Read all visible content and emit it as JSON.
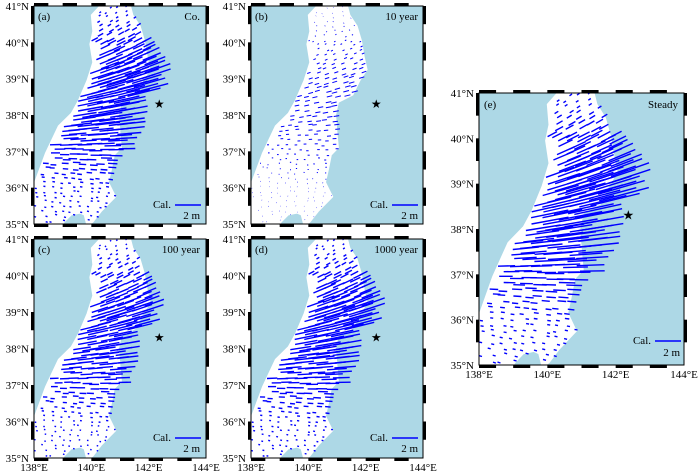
{
  "figure": {
    "panels": [
      {
        "id": "a",
        "tag": "(a)",
        "title": "Co.",
        "lat_labels": [
          "41°N",
          "40°N",
          "39°N",
          "38°N",
          "37°N",
          "36°N",
          "35°N"
        ],
        "lon_labels": [],
        "scale": {
          "label": "Cal.",
          "value": "2 m"
        },
        "vector_scale": 1.0,
        "show_star": true
      },
      {
        "id": "b",
        "tag": "(b)",
        "title": "10 year",
        "lat_labels": [
          "41°N",
          "40°N",
          "39°N",
          "38°N",
          "37°N",
          "36°N",
          "35°N"
        ],
        "lon_labels": [],
        "scale": {
          "label": "Cal.",
          "value": "2 m"
        },
        "vector_scale": 0.18,
        "show_star": true
      },
      {
        "id": "c",
        "tag": "(c)",
        "title": "100 year",
        "lat_labels": [
          "41°N",
          "40°N",
          "39°N",
          "38°N",
          "37°N",
          "36°N",
          "35°N"
        ],
        "lon_labels": [
          "138°E",
          "140°E",
          "142°E",
          "144°E"
        ],
        "scale": {
          "label": "Cal.",
          "value": "2 m"
        },
        "vector_scale": 0.75,
        "show_star": true
      },
      {
        "id": "d",
        "tag": "(d)",
        "title": "1000 year",
        "lat_labels": [
          "41°N",
          "40°N",
          "39°N",
          "38°N",
          "37°N",
          "36°N",
          "35°N"
        ],
        "lon_labels": [
          "138°E",
          "140°E",
          "142°E",
          "144°E"
        ],
        "scale": {
          "label": "Cal.",
          "value": "2 m"
        },
        "vector_scale": 0.9,
        "show_star": true
      },
      {
        "id": "e",
        "tag": "(e)",
        "title": "Steady",
        "lat_labels": [
          "41°N",
          "40°N",
          "39°N",
          "38°N",
          "37°N",
          "36°N",
          "35°N"
        ],
        "lon_labels": [
          "138°E",
          "140°E",
          "142°E",
          "144°E"
        ],
        "scale": {
          "label": "Cal.",
          "value": "2 m"
        },
        "vector_scale": 1.25,
        "show_star": true
      }
    ],
    "colors": {
      "sea": "#add8e6",
      "land": "#ffffff",
      "vector": "#0000ff",
      "frame": "#000000"
    },
    "map_extent": {
      "lon": [
        138,
        144
      ],
      "lat": [
        35,
        41
      ]
    },
    "epicenter": {
      "lon": 142.37,
      "lat": 38.3
    }
  }
}
